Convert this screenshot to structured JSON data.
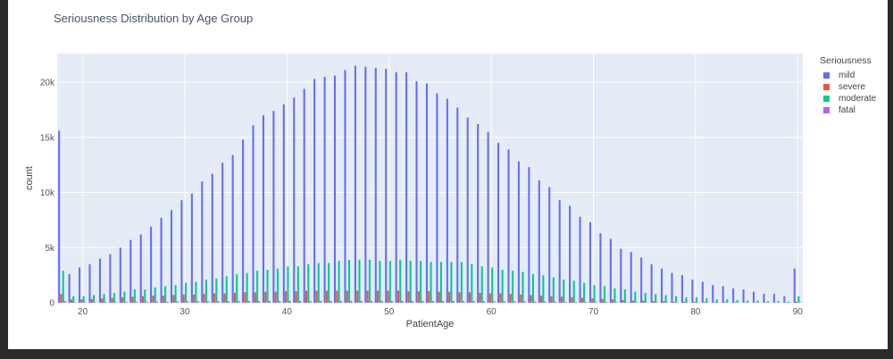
{
  "title": "Seriousness Distribution by Age Group",
  "legend": {
    "title": "Seriousness",
    "items": [
      {
        "label": "mild",
        "color": "#636efa"
      },
      {
        "label": "severe",
        "color": "#ef553b"
      },
      {
        "label": "moderate",
        "color": "#00cc96"
      },
      {
        "label": "fatal",
        "color": "#ab63fa"
      }
    ]
  },
  "chart_data": {
    "type": "bar",
    "title": "Seriousness Distribution by Age Group",
    "xlabel": "PatientAge",
    "ylabel": "count",
    "xlim": [
      17.5,
      90.5
    ],
    "ylim": [
      0,
      22600
    ],
    "x_ticks": [
      20,
      30,
      40,
      50,
      60,
      70,
      80,
      90
    ],
    "y_ticks": [
      0,
      5000,
      10000,
      15000,
      20000
    ],
    "y_tick_labels": [
      "0",
      "5k",
      "10k",
      "15k",
      "20k"
    ],
    "grid": true,
    "legend_placement": "right",
    "x": [
      18,
      19,
      20,
      21,
      22,
      23,
      24,
      25,
      26,
      27,
      28,
      29,
      30,
      31,
      32,
      33,
      34,
      35,
      36,
      37,
      38,
      39,
      40,
      41,
      42,
      43,
      44,
      45,
      46,
      47,
      48,
      49,
      50,
      51,
      52,
      53,
      54,
      55,
      56,
      57,
      58,
      59,
      60,
      61,
      62,
      63,
      64,
      65,
      66,
      67,
      68,
      69,
      70,
      71,
      72,
      73,
      74,
      75,
      76,
      77,
      78,
      79,
      80,
      81,
      82,
      83,
      84,
      85,
      86,
      87,
      88,
      89,
      90
    ],
    "series": [
      {
        "name": "mild",
        "values": [
          15600,
          2600,
          3200,
          3500,
          4000,
          4400,
          5000,
          5700,
          6200,
          6900,
          7700,
          8400,
          9300,
          9900,
          11000,
          11700,
          12700,
          13400,
          14800,
          16100,
          17000,
          17400,
          18000,
          18600,
          19400,
          20300,
          20500,
          20600,
          21100,
          21500,
          21400,
          21300,
          21200,
          20900,
          20900,
          20100,
          19900,
          19000,
          18500,
          17700,
          16800,
          16200,
          15500,
          14500,
          13900,
          12800,
          12300,
          11100,
          10500,
          9300,
          8800,
          7800,
          7300,
          6300,
          5800,
          4900,
          4600,
          4100,
          3500,
          3100,
          2700,
          2500,
          2100,
          1900,
          1600,
          1500,
          1300,
          1200,
          1000,
          800,
          800,
          600,
          3100
        ]
      },
      {
        "name": "severe",
        "values": [
          800,
          300,
          300,
          350,
          400,
          450,
          500,
          550,
          600,
          650,
          650,
          700,
          750,
          750,
          800,
          850,
          850,
          900,
          950,
          950,
          1000,
          1000,
          1050,
          1050,
          1100,
          1100,
          1100,
          1100,
          1100,
          1100,
          1100,
          1100,
          1100,
          1100,
          1050,
          1050,
          1050,
          1000,
          1000,
          950,
          950,
          900,
          850,
          850,
          800,
          750,
          700,
          650,
          600,
          550,
          500,
          450,
          400,
          350,
          300,
          250,
          200,
          200,
          150,
          150,
          100,
          100,
          80,
          80,
          60,
          60,
          50,
          40,
          30,
          30,
          20,
          20,
          100
        ]
      },
      {
        "name": "moderate",
        "values": [
          2900,
          600,
          600,
          700,
          800,
          900,
          1000,
          1200,
          1200,
          1400,
          1500,
          1600,
          1800,
          1900,
          2100,
          2200,
          2400,
          2600,
          2700,
          2900,
          3000,
          3100,
          3300,
          3300,
          3500,
          3600,
          3600,
          3800,
          3900,
          3900,
          3900,
          3800,
          3800,
          3900,
          3800,
          3800,
          3700,
          3700,
          3700,
          3700,
          3500,
          3300,
          3200,
          3000,
          2900,
          2800,
          2600,
          2500,
          2300,
          2100,
          2000,
          1800,
          1600,
          1500,
          1300,
          1200,
          1000,
          900,
          800,
          700,
          600,
          500,
          500,
          400,
          300,
          300,
          250,
          200,
          200,
          150,
          150,
          100,
          600
        ]
      },
      {
        "name": "fatal",
        "values": [
          150,
          40,
          40,
          50,
          60,
          60,
          70,
          80,
          90,
          100,
          100,
          110,
          120,
          120,
          130,
          140,
          140,
          150,
          150,
          150,
          160,
          160,
          160,
          170,
          170,
          170,
          170,
          170,
          170,
          170,
          170,
          170,
          170,
          170,
          170,
          170,
          160,
          160,
          160,
          150,
          150,
          140,
          140,
          130,
          130,
          120,
          110,
          110,
          100,
          90,
          80,
          80,
          70,
          60,
          50,
          50,
          40,
          40,
          30,
          30,
          20,
          20,
          20,
          10,
          10,
          10,
          10,
          10,
          10,
          10,
          10,
          10,
          40
        ]
      }
    ]
  }
}
